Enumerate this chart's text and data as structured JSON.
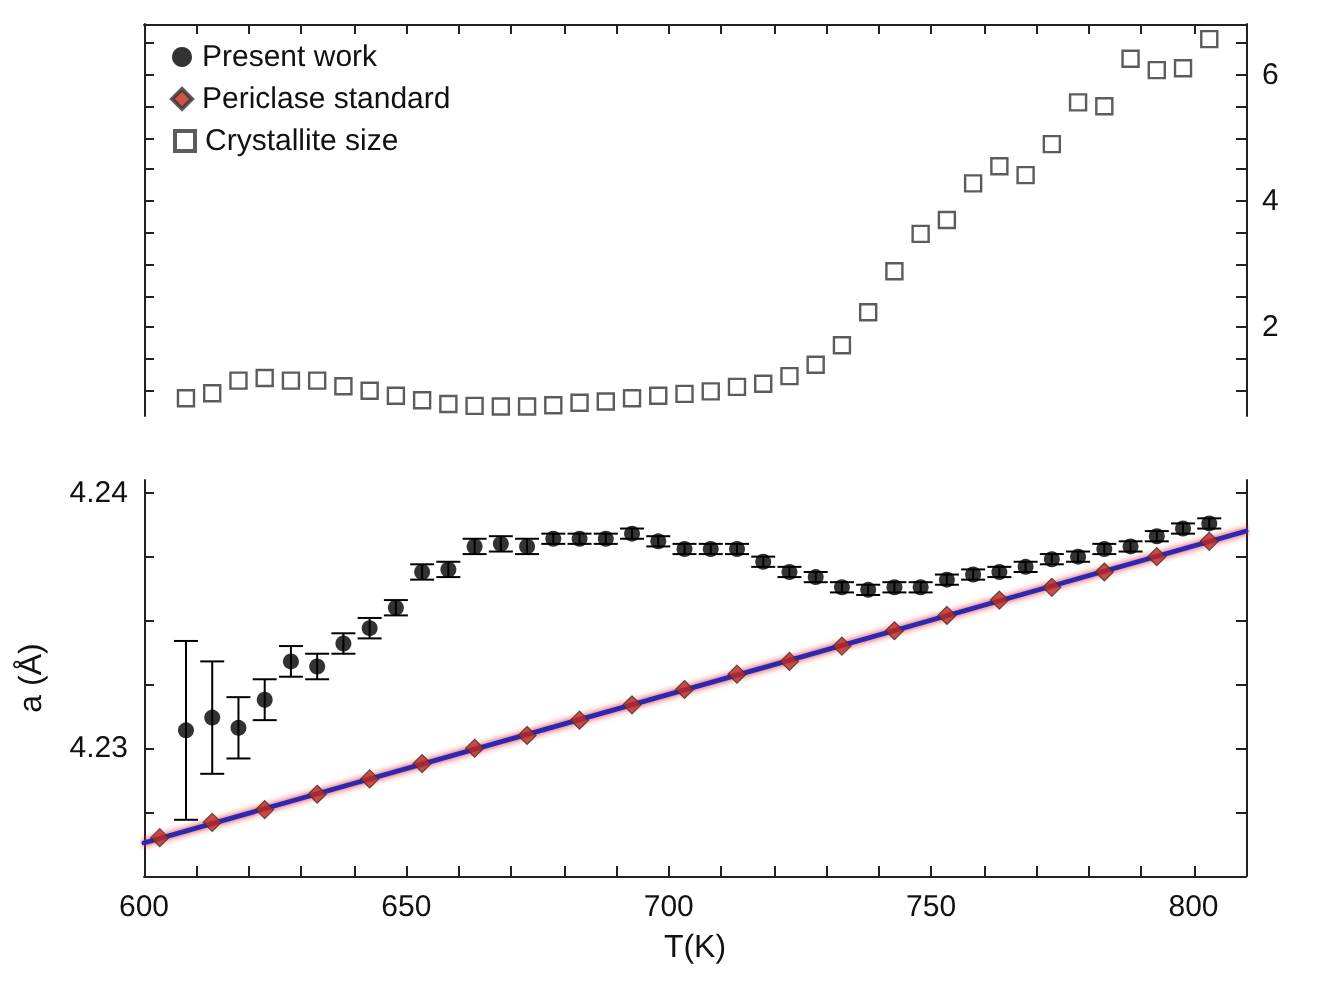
{
  "chart_data": [
    {
      "type": "scatter",
      "legend": "top left",
      "grid": false,
      "tick_labels": "y",
      "xlim": [
        600,
        810
      ],
      "xticks": [
        600,
        610,
        620,
        630,
        640,
        650,
        660,
        670,
        680,
        690,
        700,
        710,
        720,
        730,
        740,
        750,
        760,
        770,
        780,
        790,
        800
      ],
      "y2lim": [
        0.6,
        6.8
      ],
      "y2ticks": [
        {
          "value": 1,
          "label": null
        },
        {
          "value": 1.5,
          "label": null
        },
        2,
        {
          "value": 2.5,
          "label": null
        },
        {
          "value": 3,
          "label": null
        },
        {
          "value": 3.5,
          "label": null
        },
        4,
        {
          "value": 4.5,
          "label": null
        },
        {
          "value": 5,
          "label": null
        },
        {
          "value": 5.5,
          "label": null
        },
        6,
        {
          "value": 6.5,
          "label": null
        }
      ],
      "series": [
        {
          "name": "Crystallite size",
          "marker": "square",
          "axis": "y2",
          "color": "#333333",
          "x": [
            608,
            613,
            618,
            623,
            628,
            633,
            638,
            643,
            648,
            653,
            658,
            663,
            668,
            673,
            678,
            683,
            688,
            693,
            698,
            703,
            708,
            713,
            718,
            723,
            728,
            733,
            738,
            743,
            748,
            753,
            758,
            763,
            768,
            773,
            778,
            783,
            788,
            793,
            798,
            803
          ],
          "values": [
            0.88,
            0.96,
            1.16,
            1.2,
            1.16,
            1.16,
            1.07,
            1.0,
            0.92,
            0.85,
            0.79,
            0.76,
            0.75,
            0.75,
            0.77,
            0.81,
            0.83,
            0.88,
            0.92,
            0.95,
            0.99,
            1.06,
            1.11,
            1.23,
            1.41,
            1.72,
            2.24,
            2.89,
            3.48,
            3.7,
            4.28,
            4.55,
            4.41,
            4.9,
            5.56,
            5.5,
            6.25,
            6.07,
            6.1,
            6.56
          ]
        }
      ]
    },
    {
      "type": "scatter",
      "xlabel": "T(K)",
      "ylabel": "a (Å)",
      "legend": "top left",
      "grid": false,
      "xlim": [
        600,
        810
      ],
      "xticks": [
        600,
        {
          "value": 610,
          "label": null
        },
        {
          "value": 620,
          "label": null
        },
        {
          "value": 630,
          "label": null
        },
        {
          "value": 640,
          "label": null
        },
        650,
        {
          "value": 660,
          "label": null
        },
        {
          "value": 670,
          "label": null
        },
        {
          "value": 680,
          "label": null
        },
        {
          "value": 690,
          "label": null
        },
        700,
        {
          "value": 710,
          "label": null
        },
        {
          "value": 720,
          "label": null
        },
        {
          "value": 730,
          "label": null
        },
        {
          "value": 740,
          "label": null
        },
        750,
        {
          "value": 760,
          "label": null
        },
        {
          "value": 770,
          "label": null
        },
        {
          "value": 780,
          "label": null
        },
        {
          "value": 790,
          "label": null
        },
        800
      ],
      "ylim": [
        4.225,
        4.2405
      ],
      "yticks": [
        {
          "value": 4.2275,
          "label": null
        },
        4.23,
        {
          "value": 4.2325,
          "label": null
        },
        {
          "value": 4.235,
          "label": null
        },
        {
          "value": 4.2375,
          "label": null
        },
        4.24
      ],
      "series": [
        {
          "name": "Present work",
          "marker": "circle",
          "color": "#000000",
          "x": [
            608,
            613,
            618,
            623,
            628,
            633,
            638,
            643,
            648,
            653,
            658,
            663,
            668,
            673,
            678,
            683,
            688,
            693,
            698,
            703,
            708,
            713,
            718,
            723,
            728,
            733,
            738,
            743,
            748,
            753,
            758,
            763,
            768,
            773,
            778,
            783,
            788,
            793,
            798,
            803
          ],
          "values": [
            4.2307,
            4.2312,
            4.2308,
            4.2319,
            4.2334,
            4.2332,
            4.2341,
            4.2347,
            4.2355,
            4.2369,
            4.237,
            4.2379,
            4.238,
            4.2379,
            4.2382,
            4.2382,
            4.2382,
            4.2384,
            4.2381,
            4.2378,
            4.2378,
            4.2378,
            4.2373,
            4.2369,
            4.2367,
            4.2363,
            4.2362,
            4.2363,
            4.2363,
            4.2366,
            4.2368,
            4.2369,
            4.2371,
            4.2374,
            4.2375,
            4.2378,
            4.2379,
            4.2383,
            4.2386,
            4.2388
          ],
          "errors": [
            0.0035,
            0.0022,
            0.0012,
            0.0008,
            0.0006,
            0.0005,
            0.0004,
            0.0004,
            0.0003,
            0.0003,
            0.0003,
            0.0003,
            0.0003,
            0.0003,
            0.0002,
            0.0002,
            0.0002,
            0.0002,
            0.0002,
            0.0002,
            0.0002,
            0.0002,
            0.0002,
            0.0002,
            0.0002,
            0.0002,
            0.0002,
            0.0002,
            0.0002,
            0.0002,
            0.0002,
            0.0002,
            0.0002,
            0.0002,
            0.0002,
            0.0002,
            0.0002,
            0.0002,
            0.0002,
            0.0002
          ]
        },
        {
          "name": "Periclase standard",
          "marker": "diamond",
          "color": "#c0281e",
          "x": [
            603,
            613,
            623,
            633,
            643,
            653,
            663,
            673,
            683,
            693,
            703,
            713,
            723,
            733,
            743,
            753,
            763,
            773,
            783,
            793,
            803
          ],
          "values": [
            4.2265,
            4.2271,
            4.2276,
            4.2282,
            4.2288,
            4.2294,
            4.23,
            4.2305,
            4.2311,
            4.2317,
            4.2323,
            4.2329,
            4.2334,
            4.234,
            4.2346,
            4.2352,
            4.2358,
            4.2363,
            4.2369,
            4.2375,
            4.2381
          ]
        },
        {
          "type": "line",
          "marker": "none",
          "line_style": "solid",
          "color": "#2b2bb0",
          "x": [
            600,
            810
          ],
          "values": [
            4.2263,
            4.2385
          ]
        }
      ]
    }
  ]
}
